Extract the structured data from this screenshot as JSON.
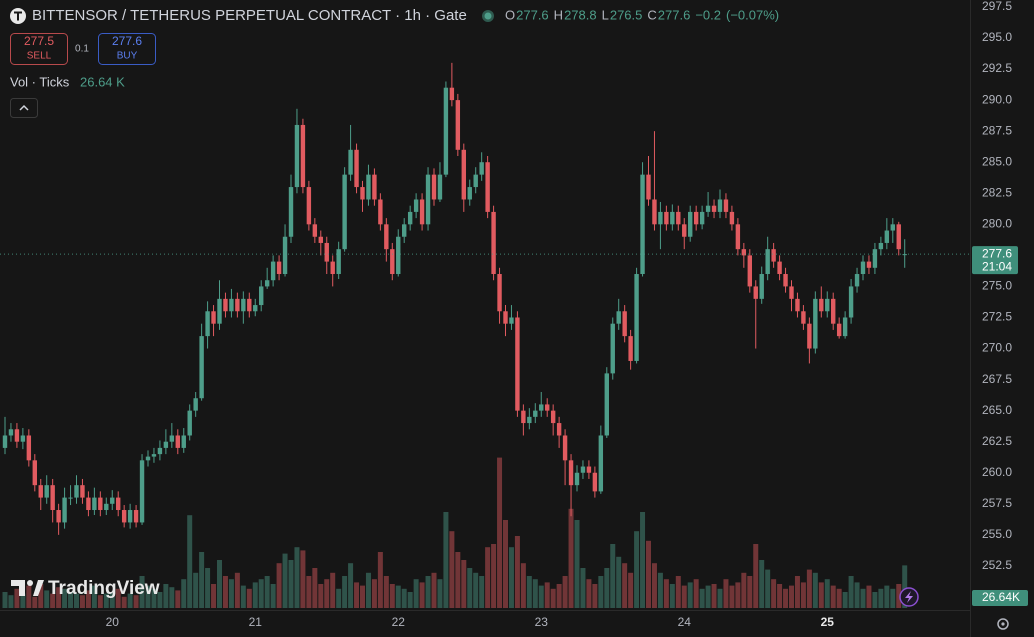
{
  "chart_data": {
    "type": "candlestick",
    "title": "BITTENSOR / TETHERUS PERPETUAL CONTRACT · 1h · Gate",
    "legend_keys": [
      "O",
      "H",
      "L",
      "C"
    ],
    "legend_values": [
      277.6,
      278.8,
      276.5,
      277.6
    ],
    "change": "−0.2",
    "change_pct": "(−0.07%)",
    "sell": {
      "price": 277.5,
      "label": "SELL"
    },
    "spread": 0.1,
    "buy": {
      "price": 277.6,
      "label": "BUY"
    },
    "indicator": "Vol · Ticks",
    "indicator_value": "26.64 K",
    "watermark": "TradingView",
    "last_price": 277.6,
    "countdown": "21:04",
    "last_volume_label": "26.64K",
    "up_color": "#4e9e8a",
    "down_color": "#e15b60",
    "grid": false,
    "ylim": [
      248.95,
      298.06
    ],
    "yticks": [
      297.5,
      {
        "value": 295,
        "label": "295.0"
      },
      292.5,
      {
        "value": 290,
        "label": "290.0"
      },
      287.5,
      {
        "value": 285,
        "label": "285.0"
      },
      282.5,
      {
        "value": 280,
        "label": "280.0"
      },
      {
        "value": 275,
        "label": "275.0"
      },
      272.5,
      {
        "value": 270,
        "label": "270.0"
      },
      267.5,
      {
        "value": 265,
        "label": "265.0"
      },
      262.5,
      {
        "value": 260,
        "label": "260.0"
      },
      257.5,
      {
        "value": 255,
        "label": "255.0"
      },
      252.5
    ],
    "xticks": [
      {
        "value": 18,
        "label": "20"
      },
      {
        "value": 42,
        "label": "21"
      },
      {
        "value": 66,
        "label": "22"
      },
      {
        "value": 90,
        "label": "23"
      },
      {
        "value": 114,
        "label": "24"
      },
      {
        "value": 138,
        "label": "25"
      }
    ],
    "volume_lim": [
      0,
      100
    ],
    "open": [
      262,
      263,
      263.5,
      262.5,
      263,
      261,
      259,
      258,
      259,
      257,
      256,
      258,
      258,
      259,
      258,
      257,
      258,
      257,
      257.5,
      258,
      257,
      256,
      257,
      256,
      261,
      261.3,
      261.5,
      262,
      262.5,
      263,
      262,
      263,
      265,
      266,
      271,
      273,
      272,
      274,
      273,
      274,
      273,
      274,
      273,
      273.5,
      275,
      275.5,
      277,
      276,
      279,
      283,
      288,
      283,
      280,
      279,
      278.5,
      277,
      276,
      278,
      284,
      286,
      283,
      282,
      284,
      282,
      280,
      278,
      276,
      279,
      280,
      281,
      282,
      280,
      284,
      282,
      284,
      291,
      290,
      286,
      282,
      283,
      284,
      285,
      281,
      276,
      273,
      272,
      272.5,
      265,
      264,
      264.5,
      265,
      265.5,
      265,
      264,
      263,
      261,
      259,
      260,
      260.5,
      260,
      258.5,
      263,
      268,
      272,
      273,
      271,
      269,
      276,
      284,
      282,
      280,
      281,
      280,
      281,
      280,
      279,
      281,
      280,
      281,
      281.5,
      281,
      282,
      281,
      280,
      278,
      277.5,
      275,
      274,
      276,
      278,
      277,
      276,
      275,
      274,
      273,
      272,
      270,
      274,
      273,
      274,
      272,
      271,
      272.5,
      275,
      276,
      277,
      276.5,
      278,
      278.5,
      279.5,
      280,
      277.6
    ],
    "high": [
      264.5,
      264,
      264,
      263.6,
      263.5,
      261.5,
      259.5,
      259.8,
      259.5,
      257.5,
      258.8,
      259,
      259.8,
      259.5,
      258.5,
      258.8,
      258.5,
      258,
      258.6,
      258.5,
      257.4,
      257.5,
      257.4,
      261.5,
      261.8,
      262,
      262.6,
      263.5,
      264,
      263.5,
      263.6,
      265.5,
      266.5,
      272,
      273.8,
      273.5,
      275.5,
      274.5,
      274.8,
      274.5,
      274.6,
      274.5,
      274,
      275.5,
      276.5,
      277.5,
      277.5,
      280,
      284,
      289.3,
      288.5,
      283.5,
      280.5,
      279.5,
      279,
      277.5,
      278.6,
      284.6,
      288,
      286.5,
      283.5,
      284.8,
      284.5,
      282.5,
      280.5,
      278.5,
      279.6,
      280.5,
      281.5,
      282.5,
      282.5,
      284.6,
      284.5,
      285,
      291.5,
      293,
      290.5,
      286.5,
      283.6,
      284.6,
      285.8,
      285.5,
      281.5,
      276.5,
      273.5,
      273.5,
      273,
      265.5,
      265.2,
      265.6,
      266.5,
      266,
      265.5,
      264.5,
      263.5,
      261.5,
      260.6,
      261,
      261,
      260.5,
      263.8,
      268.5,
      272.5,
      274,
      273.5,
      271.5,
      276.5,
      285,
      285.5,
      287.5,
      281.8,
      281.5,
      281.6,
      281.5,
      280.5,
      281.5,
      281.5,
      281.5,
      282.6,
      282,
      282.8,
      282.5,
      281.5,
      280.5,
      278.5,
      278,
      275.5,
      276.6,
      279,
      278.5,
      277.5,
      276.5,
      275.5,
      274.5,
      273.5,
      272.5,
      274.6,
      275,
      274.6,
      274.5,
      272.5,
      273,
      275.6,
      276.5,
      277.5,
      277.5,
      278.5,
      279,
      280.5,
      280.5,
      280.2,
      278.8
    ],
    "low": [
      261.5,
      262.5,
      262,
      261.9,
      260.5,
      258.5,
      257,
      257.5,
      256,
      255,
      255.5,
      257.4,
      257.5,
      257.5,
      256.5,
      256.6,
      256.5,
      256.6,
      257,
      256.5,
      255.6,
      255.5,
      255.6,
      255.8,
      260.5,
      260.8,
      261,
      261.5,
      262,
      261.5,
      261.6,
      262.6,
      264.5,
      265.8,
      270,
      271,
      271.5,
      272.5,
      272.5,
      272.5,
      272,
      272.5,
      272.6,
      273,
      274.8,
      275,
      275.5,
      275.8,
      278.5,
      282.5,
      282.5,
      279.5,
      278.5,
      277.5,
      276,
      275,
      275.6,
      277.8,
      283.5,
      282.5,
      281,
      281.5,
      281.5,
      279.5,
      277,
      275.5,
      275.8,
      278.5,
      279.5,
      280.5,
      279.5,
      279.5,
      281.5,
      281.8,
      283.8,
      289.5,
      285.5,
      281,
      281.5,
      282.5,
      283.5,
      280.5,
      275.5,
      272,
      271,
      271.5,
      264.5,
      263,
      263.5,
      264,
      264.5,
      264.5,
      263,
      262,
      259,
      256.5,
      258.5,
      259.5,
      259.5,
      258,
      258.3,
      262.8,
      267.5,
      271.5,
      270.5,
      268.3,
      268.8,
      275.8,
      281.5,
      279.5,
      278,
      279.5,
      279.5,
      279.5,
      278,
      278.6,
      279.5,
      279.6,
      280.6,
      280.5,
      280.5,
      280.5,
      279.5,
      277.5,
      276.5,
      274.5,
      270,
      273.6,
      275.5,
      276.5,
      275.5,
      274.5,
      273,
      272.5,
      271.5,
      268.8,
      269.6,
      272.5,
      272.5,
      271.5,
      270.8,
      270.8,
      272,
      274.5,
      275.5,
      276,
      276,
      277.5,
      278,
      278.5,
      277.5,
      276.5
    ],
    "close": [
      263,
      263.5,
      262.5,
      263,
      261,
      259,
      258,
      259,
      257,
      256,
      258,
      258,
      259,
      258,
      257,
      258,
      257,
      257.5,
      258,
      257,
      256,
      257,
      256,
      261,
      261.3,
      261.5,
      262,
      262.5,
      263,
      262,
      263,
      265,
      266,
      271,
      273,
      272,
      274,
      273,
      274,
      273,
      274,
      273,
      273.5,
      275,
      275.5,
      277,
      276,
      279,
      283,
      288,
      283,
      280,
      279,
      278.5,
      277,
      276,
      278,
      284,
      286,
      283,
      282,
      284,
      282,
      280,
      278,
      276,
      279,
      280,
      281,
      282,
      280,
      284,
      282,
      284,
      291,
      290,
      286,
      282,
      283,
      284,
      285,
      281,
      276,
      273,
      272,
      272.5,
      265,
      264,
      264.5,
      265,
      265.5,
      265,
      264,
      263,
      261,
      259,
      260,
      260.5,
      260,
      258.5,
      263,
      268,
      272,
      273,
      271,
      269,
      276,
      284,
      282,
      280,
      281,
      280,
      281,
      280,
      279,
      281,
      280,
      281,
      281.5,
      281,
      282,
      281,
      280,
      278,
      277.5,
      275,
      274,
      276,
      278,
      277,
      276,
      275,
      274,
      273,
      272,
      270,
      274,
      273,
      274,
      272,
      271,
      272.5,
      275,
      276,
      277,
      276.5,
      278,
      278.5,
      279.5,
      280,
      278,
      277.6
    ],
    "volume": [
      10,
      8,
      12,
      9,
      14,
      7,
      15,
      11,
      9,
      13,
      12,
      10,
      9,
      8,
      11,
      14,
      8,
      9,
      10,
      12,
      7,
      9,
      8,
      20,
      14,
      12,
      10,
      15,
      13,
      11,
      18,
      58,
      22,
      35,
      25,
      15,
      30,
      20,
      18,
      22,
      14,
      12,
      16,
      18,
      20,
      15,
      28,
      34,
      30,
      38,
      36,
      20,
      25,
      15,
      18,
      22,
      12,
      20,
      28,
      16,
      14,
      22,
      18,
      35,
      20,
      15,
      14,
      12,
      10,
      18,
      16,
      20,
      22,
      18,
      60,
      48,
      35,
      30,
      25,
      22,
      20,
      38,
      40,
      94,
      55,
      38,
      45,
      28,
      20,
      18,
      14,
      16,
      12,
      15,
      20,
      62,
      55,
      25,
      18,
      15,
      20,
      25,
      40,
      32,
      28,
      22,
      48,
      60,
      42,
      28,
      22,
      18,
      15,
      20,
      14,
      16,
      18,
      12,
      14,
      15,
      12,
      18,
      14,
      16,
      22,
      20,
      40,
      30,
      24,
      18,
      15,
      12,
      14,
      20,
      16,
      24,
      22,
      16,
      18,
      14,
      12,
      10,
      20,
      16,
      12,
      14,
      10,
      12,
      14,
      12,
      15,
      26.64
    ]
  }
}
